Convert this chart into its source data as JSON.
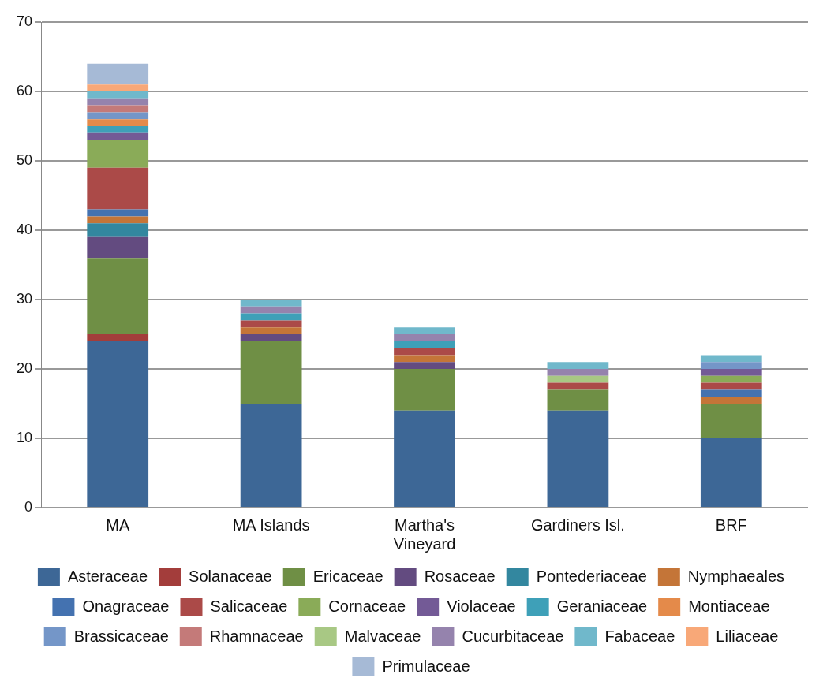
{
  "chart_data": {
    "type": "bar",
    "stacked": true,
    "categories": [
      "MA",
      "MA Islands",
      "Martha's Vineyard",
      "Gardiners Isl.",
      "BRF"
    ],
    "ylim": [
      0,
      70
    ],
    "yticks": [
      0,
      10,
      20,
      30,
      40,
      50,
      60,
      70
    ],
    "grid": "y",
    "legend": "bottom",
    "series": [
      {
        "name": "Asteraceae",
        "color": "#3d6796",
        "values": [
          24,
          15,
          14,
          14,
          10
        ]
      },
      {
        "name": "Solanaceae",
        "color": "#a33d3b",
        "values": [
          1,
          0,
          0,
          0,
          0
        ]
      },
      {
        "name": "Ericaceae",
        "color": "#6f8f45",
        "values": [
          11,
          9,
          6,
          3,
          5
        ]
      },
      {
        "name": "Rosaceae",
        "color": "#634b80",
        "values": [
          3,
          1,
          1,
          0,
          0
        ]
      },
      {
        "name": "Pontederiaceae",
        "color": "#33879f",
        "values": [
          2,
          0,
          0,
          0,
          0
        ]
      },
      {
        "name": "Nymphaeales",
        "color": "#c47538",
        "values": [
          1,
          1,
          1,
          0,
          1
        ]
      },
      {
        "name": "Onagraceae",
        "color": "#4472b0",
        "values": [
          1,
          0,
          0,
          0,
          1
        ]
      },
      {
        "name": "Salicaceae",
        "color": "#ab4a48",
        "values": [
          6,
          1,
          1,
          1,
          1
        ]
      },
      {
        "name": "Cornaceae",
        "color": "#8aab58",
        "values": [
          4,
          0,
          0,
          0,
          1
        ]
      },
      {
        "name": "Violaceae",
        "color": "#735a96",
        "values": [
          1,
          0,
          0,
          0,
          1
        ]
      },
      {
        "name": "Geraniaceae",
        "color": "#3ea0b8",
        "values": [
          1,
          1,
          1,
          0,
          0
        ]
      },
      {
        "name": "Montiaceae",
        "color": "#e48a4a",
        "values": [
          1,
          0,
          0,
          0,
          0
        ]
      },
      {
        "name": "Brassicaceae",
        "color": "#7496c8",
        "values": [
          1,
          0,
          0,
          0,
          1
        ]
      },
      {
        "name": "Rhamnaceae",
        "color": "#c47a79",
        "values": [
          1,
          0,
          0,
          0,
          0
        ]
      },
      {
        "name": "Malvaceae",
        "color": "#a8c884",
        "values": [
          0,
          0,
          0,
          1,
          0
        ]
      },
      {
        "name": "Cucurbitaceae",
        "color": "#9583ad",
        "values": [
          1,
          1,
          1,
          1,
          0
        ]
      },
      {
        "name": "Fabaceae",
        "color": "#70b8cb",
        "values": [
          1,
          1,
          1,
          1,
          1
        ]
      },
      {
        "name": "Liliaceae",
        "color": "#f8a878",
        "values": [
          1,
          0,
          0,
          0,
          0
        ]
      },
      {
        "name": "Primulaceae",
        "color": "#a6bad6",
        "values": [
          3,
          0,
          0,
          0,
          0
        ]
      }
    ]
  }
}
